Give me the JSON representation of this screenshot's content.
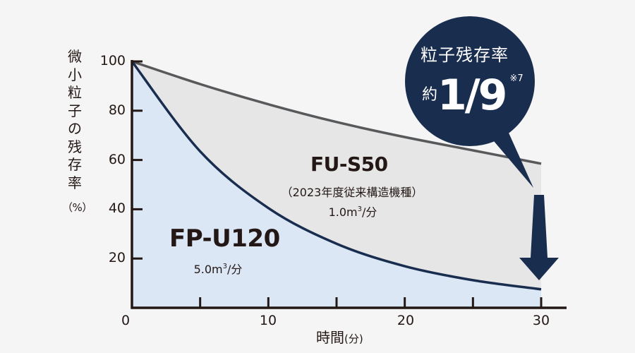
{
  "chart_data": {
    "type": "area",
    "title": "",
    "xlabel": "時間(分)",
    "ylabel": "微小粒子の残存率(%)",
    "xlim": [
      0,
      30
    ],
    "ylim": [
      0,
      100
    ],
    "x_ticks": [
      0,
      10,
      20,
      30
    ],
    "x_minor_ticks": [
      5,
      15,
      25
    ],
    "y_ticks": [
      20,
      40,
      60,
      80,
      100
    ],
    "grid": false,
    "x": [
      0,
      5,
      10,
      15,
      20,
      25,
      30
    ],
    "series": [
      {
        "name": "FU-S50",
        "subtitle": "（2023年度従来構造機種）",
        "airflow": "1.0m³/分",
        "color": "#58595b",
        "fill": "#e6e6e7",
        "values": [
          100,
          90.8,
          82.6,
          75.4,
          69.3,
          63.9,
          58.5
        ]
      },
      {
        "name": "FP-U120",
        "airflow": "5.0m³/分",
        "color": "#192d4f",
        "fill": "#dce7f5",
        "values": [
          100,
          63.5,
          40.5,
          26.0,
          16.9,
          11.2,
          7.5
        ]
      }
    ],
    "annotations": [
      {
        "text": "粒子残存率 約1/9 ※7",
        "position": "top-right callout",
        "points_to_x": 30
      },
      {
        "type": "down-arrow",
        "x": 30,
        "from": 58.5,
        "to": 7.5
      }
    ]
  },
  "axis": {
    "y_label_chars": "微小粒子の残存率",
    "y_label_unit": "（%）",
    "y_tick_labels": [
      "100",
      "80",
      "60",
      "40",
      "20"
    ],
    "x_tick_labels": [
      "0",
      "10",
      "20",
      "30"
    ],
    "x_label_main": "時間",
    "x_label_unit": "(分)"
  },
  "labels": {
    "fu_name": "FU-S50",
    "fu_subtitle": "（2023年度従来構造機種）",
    "fu_airflow_prefix": "1.0m",
    "fu_airflow_sup": "3",
    "fu_airflow_suffix": "/分",
    "fp_name": "FP-U120",
    "fp_airflow_prefix": "5.0m",
    "fp_airflow_sup": "3",
    "fp_airflow_suffix": "/分"
  },
  "callout": {
    "title": "粒子残存率",
    "approx": "約",
    "value": "1/9",
    "note": "※7",
    "color": "#192d4f"
  }
}
